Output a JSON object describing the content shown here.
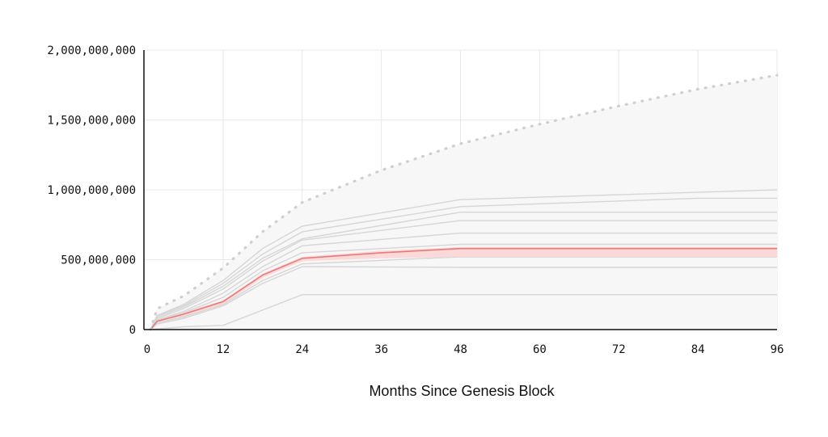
{
  "chart_data": {
    "type": "line",
    "title": "",
    "xlabel": "Months Since Genesis Block",
    "ylabel": "",
    "xlim": [
      0,
      96
    ],
    "ylim": [
      0,
      2000000000
    ],
    "x_ticks": [
      "0",
      "12",
      "24",
      "36",
      "48",
      "60",
      "72",
      "84",
      "96"
    ],
    "y_ticks": [
      "0",
      "500,000,000",
      "1,000,000,000",
      "1,500,000,000",
      "2,000,000,000"
    ],
    "x_tick_values": [
      0,
      12,
      24,
      36,
      48,
      60,
      72,
      84,
      96
    ],
    "y_tick_values": [
      0,
      500000000,
      1000000000,
      1500000000,
      2000000000
    ],
    "grid": true,
    "colors": {
      "highlight_line": "#e77a7a",
      "highlight_band": "#fbd4d4",
      "gray_lines": "#d6d6d6",
      "max_line": "#cfcfcf",
      "max_area": "#f7f7f7",
      "grid": "#e8e8e8",
      "axis": "#111111"
    },
    "max_supply_series": {
      "style": "dotted",
      "x": [
        1,
        2,
        6,
        12,
        18,
        24,
        36,
        48,
        60,
        72,
        84,
        96
      ],
      "y": [
        0,
        150000000,
        240000000,
        440000000,
        700000000,
        910000000,
        1140000000,
        1330000000,
        1470000000,
        1600000000,
        1720000000,
        1820000000
      ]
    },
    "series": [
      {
        "x": [
          1,
          2,
          6,
          12,
          18,
          24,
          48,
          96
        ],
        "y": [
          0,
          100000000,
          180000000,
          350000000,
          580000000,
          740000000,
          930000000,
          1000000000
        ]
      },
      {
        "x": [
          1,
          2,
          6,
          12,
          18,
          24,
          48,
          84,
          96
        ],
        "y": [
          0,
          100000000,
          170000000,
          330000000,
          540000000,
          700000000,
          880000000,
          940000000,
          940000000
        ]
      },
      {
        "x": [
          1,
          2,
          6,
          12,
          18,
          24,
          48,
          96
        ],
        "y": [
          0,
          90000000,
          160000000,
          310000000,
          510000000,
          650000000,
          840000000,
          840000000
        ]
      },
      {
        "x": [
          1,
          2,
          6,
          12,
          18,
          24,
          48,
          96
        ],
        "y": [
          0,
          80000000,
          150000000,
          290000000,
          490000000,
          640000000,
          780000000,
          780000000
        ]
      },
      {
        "x": [
          1,
          2,
          6,
          12,
          18,
          24,
          48,
          96
        ],
        "y": [
          0,
          70000000,
          130000000,
          260000000,
          450000000,
          600000000,
          690000000,
          690000000
        ]
      },
      {
        "x": [
          1,
          2,
          6,
          12,
          18,
          24,
          48,
          96
        ],
        "y": [
          0,
          60000000,
          120000000,
          230000000,
          420000000,
          550000000,
          610000000,
          610000000
        ]
      },
      {
        "x": [
          1,
          2,
          6,
          12,
          18,
          24,
          48,
          96
        ],
        "y": [
          0,
          50000000,
          90000000,
          180000000,
          350000000,
          470000000,
          520000000,
          520000000
        ]
      },
      {
        "x": [
          1,
          2,
          6,
          12,
          18,
          24,
          48,
          96
        ],
        "y": [
          0,
          40000000,
          80000000,
          170000000,
          330000000,
          450000000,
          445000000,
          445000000
        ]
      },
      {
        "x": [
          1,
          6,
          12,
          24,
          48,
          96
        ],
        "y": [
          0,
          20000000,
          30000000,
          250000000,
          250000000,
          250000000
        ]
      }
    ],
    "highlighted_series": {
      "x": [
        1,
        2,
        6,
        12,
        18,
        24,
        36,
        48,
        96
      ],
      "y": [
        0,
        60000000,
        110000000,
        200000000,
        390000000,
        510000000,
        550000000,
        580000000,
        580000000
      ],
      "band_upper": [
        0,
        65000000,
        120000000,
        210000000,
        400000000,
        520000000,
        565000000,
        590000000,
        590000000
      ],
      "band_lower": [
        0,
        50000000,
        95000000,
        180000000,
        370000000,
        490000000,
        510000000,
        520000000,
        520000000
      ]
    }
  }
}
